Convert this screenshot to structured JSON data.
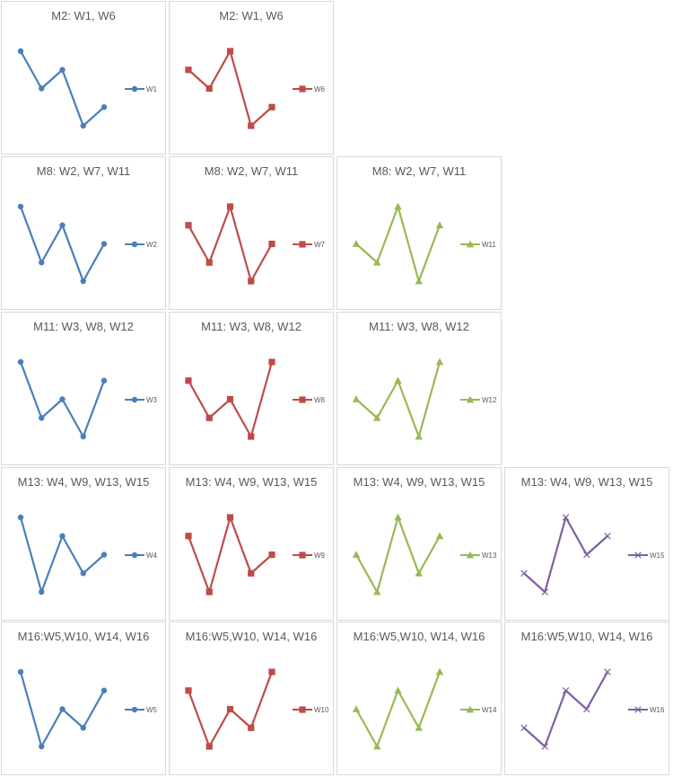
{
  "colors": {
    "blue": "#4a7ebb",
    "red": "#be4b48",
    "green": "#98b954",
    "purple": "#7d60a0",
    "panel_border": "#d9d9d9"
  },
  "chart_data": [
    {
      "type": "line",
      "title": "M2: W1, W6",
      "series": [
        {
          "name": "W1",
          "values": [
            4,
            2,
            3,
            0,
            1
          ],
          "color": "blue",
          "marker": "circle"
        }
      ],
      "ylim": [
        0,
        4
      ]
    },
    {
      "type": "line",
      "title": "M2: W1, W6",
      "series": [
        {
          "name": "W6",
          "values": [
            3,
            2,
            4,
            0,
            1
          ],
          "color": "red",
          "marker": "square"
        }
      ],
      "ylim": [
        0,
        4
      ]
    },
    {
      "type": "line",
      "title": "M8: W2, W7, W11",
      "series": [
        {
          "name": "W2",
          "values": [
            4,
            1,
            3,
            0,
            2
          ],
          "color": "blue",
          "marker": "circle"
        }
      ],
      "ylim": [
        0,
        4
      ]
    },
    {
      "type": "line",
      "title": "M8: W2, W7, W11",
      "series": [
        {
          "name": "W7",
          "values": [
            3,
            1,
            4,
            0,
            2
          ],
          "color": "red",
          "marker": "square"
        }
      ],
      "ylim": [
        0,
        4
      ]
    },
    {
      "type": "line",
      "title": "M8: W2, W7, W11",
      "series": [
        {
          "name": "W11",
          "values": [
            2,
            1,
            4,
            0,
            3
          ],
          "color": "green",
          "marker": "triangle"
        }
      ],
      "ylim": [
        0,
        4
      ]
    },
    {
      "type": "line",
      "title": "M11: W3, W8, W12",
      "series": [
        {
          "name": "W3",
          "values": [
            4,
            1,
            2,
            0,
            3
          ],
          "color": "blue",
          "marker": "circle"
        }
      ],
      "ylim": [
        0,
        4
      ]
    },
    {
      "type": "line",
      "title": "M11: W3, W8, W12",
      "series": [
        {
          "name": "W8",
          "values": [
            3,
            1,
            2,
            0,
            4
          ],
          "color": "red",
          "marker": "square"
        }
      ],
      "ylim": [
        0,
        4
      ]
    },
    {
      "type": "line",
      "title": "M11: W3, W8, W12",
      "series": [
        {
          "name": "W12",
          "values": [
            2,
            1,
            3,
            0,
            4
          ],
          "color": "green",
          "marker": "triangle"
        }
      ],
      "ylim": [
        0,
        4
      ]
    },
    {
      "type": "line",
      "title": "M13: W4, W9, W13, W15",
      "series": [
        {
          "name": "W4",
          "values": [
            4,
            0,
            3,
            1,
            2
          ],
          "color": "blue",
          "marker": "circle"
        }
      ],
      "ylim": [
        0,
        4
      ]
    },
    {
      "type": "line",
      "title": "M13: W4, W9, W13, W15",
      "series": [
        {
          "name": "W9",
          "values": [
            3,
            0,
            4,
            1,
            2
          ],
          "color": "red",
          "marker": "square"
        }
      ],
      "ylim": [
        0,
        4
      ]
    },
    {
      "type": "line",
      "title": "M13: W4, W9, W13, W15",
      "series": [
        {
          "name": "W13",
          "values": [
            2,
            0,
            4,
            1,
            3
          ],
          "color": "green",
          "marker": "triangle"
        }
      ],
      "ylim": [
        0,
        4
      ]
    },
    {
      "type": "line",
      "title": "M13: W4, W9, W13, W15",
      "series": [
        {
          "name": "W15",
          "values": [
            1,
            0,
            4,
            2,
            3
          ],
          "color": "purple",
          "marker": "x"
        }
      ],
      "ylim": [
        0,
        4
      ]
    },
    {
      "type": "line",
      "title": "M16:W5,W10, W14, W16",
      "series": [
        {
          "name": "W5",
          "values": [
            4,
            0,
            2,
            1,
            3
          ],
          "color": "blue",
          "marker": "circle"
        }
      ],
      "ylim": [
        0,
        4
      ]
    },
    {
      "type": "line",
      "title": "M16:W5,W10, W14, W16",
      "series": [
        {
          "name": "W10",
          "values": [
            3,
            0,
            2,
            1,
            4
          ],
          "color": "red",
          "marker": "square"
        }
      ],
      "ylim": [
        0,
        4
      ]
    },
    {
      "type": "line",
      "title": "M16:W5,W10, W14, W16",
      "series": [
        {
          "name": "W14",
          "values": [
            2,
            0,
            3,
            1,
            4
          ],
          "color": "green",
          "marker": "triangle"
        }
      ],
      "ylim": [
        0,
        4
      ]
    },
    {
      "type": "line",
      "title": "M16:W5,W10, W14, W16",
      "series": [
        {
          "name": "W16",
          "values": [
            1,
            0,
            3,
            2,
            4
          ],
          "color": "purple",
          "marker": "x"
        }
      ],
      "ylim": [
        0,
        4
      ]
    }
  ]
}
